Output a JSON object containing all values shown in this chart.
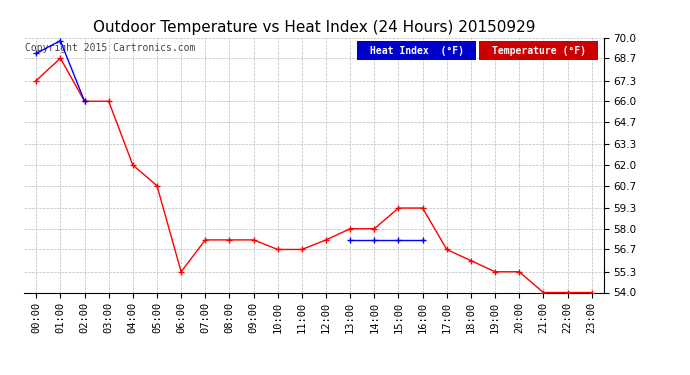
{
  "title": "Outdoor Temperature vs Heat Index (24 Hours) 20150929",
  "copyright": "Copyright 2015 Cartronics.com",
  "background_color": "#ffffff",
  "plot_bg_color": "#ffffff",
  "grid_color": "#bbbbbb",
  "ylim": [
    54.0,
    70.0
  ],
  "yticks": [
    54.0,
    55.3,
    56.7,
    58.0,
    59.3,
    60.7,
    62.0,
    63.3,
    64.7,
    66.0,
    67.3,
    68.7,
    70.0
  ],
  "hours": [
    "00:00",
    "01:00",
    "02:00",
    "03:00",
    "04:00",
    "05:00",
    "06:00",
    "07:00",
    "08:00",
    "09:00",
    "10:00",
    "11:00",
    "12:00",
    "13:00",
    "14:00",
    "15:00",
    "16:00",
    "17:00",
    "18:00",
    "19:00",
    "20:00",
    "21:00",
    "22:00",
    "23:00"
  ],
  "temperature": [
    67.3,
    68.7,
    66.0,
    66.0,
    62.0,
    60.7,
    55.3,
    57.3,
    57.3,
    57.3,
    56.7,
    56.7,
    57.3,
    58.0,
    58.0,
    59.3,
    59.3,
    56.7,
    56.0,
    55.3,
    55.3,
    54.0,
    54.0,
    54.0
  ],
  "heat_index_seg1": {
    "x": [
      0,
      1,
      2
    ],
    "y": [
      69.0,
      69.8,
      66.0
    ]
  },
  "heat_index_seg2": {
    "x": [
      13,
      14,
      15,
      16
    ],
    "y": [
      57.3,
      57.3,
      57.3,
      57.3
    ]
  },
  "temp_color": "#ff0000",
  "heat_color": "#0000ff",
  "legend_heat_label": "Heat Index  (°F)",
  "legend_temp_label": "Temperature (°F)",
  "legend_heat_bg": "#0000cc",
  "legend_temp_bg": "#cc0000",
  "legend_text_color": "#ffffff",
  "title_fontsize": 11,
  "tick_fontsize": 7.5,
  "copyright_fontsize": 7
}
